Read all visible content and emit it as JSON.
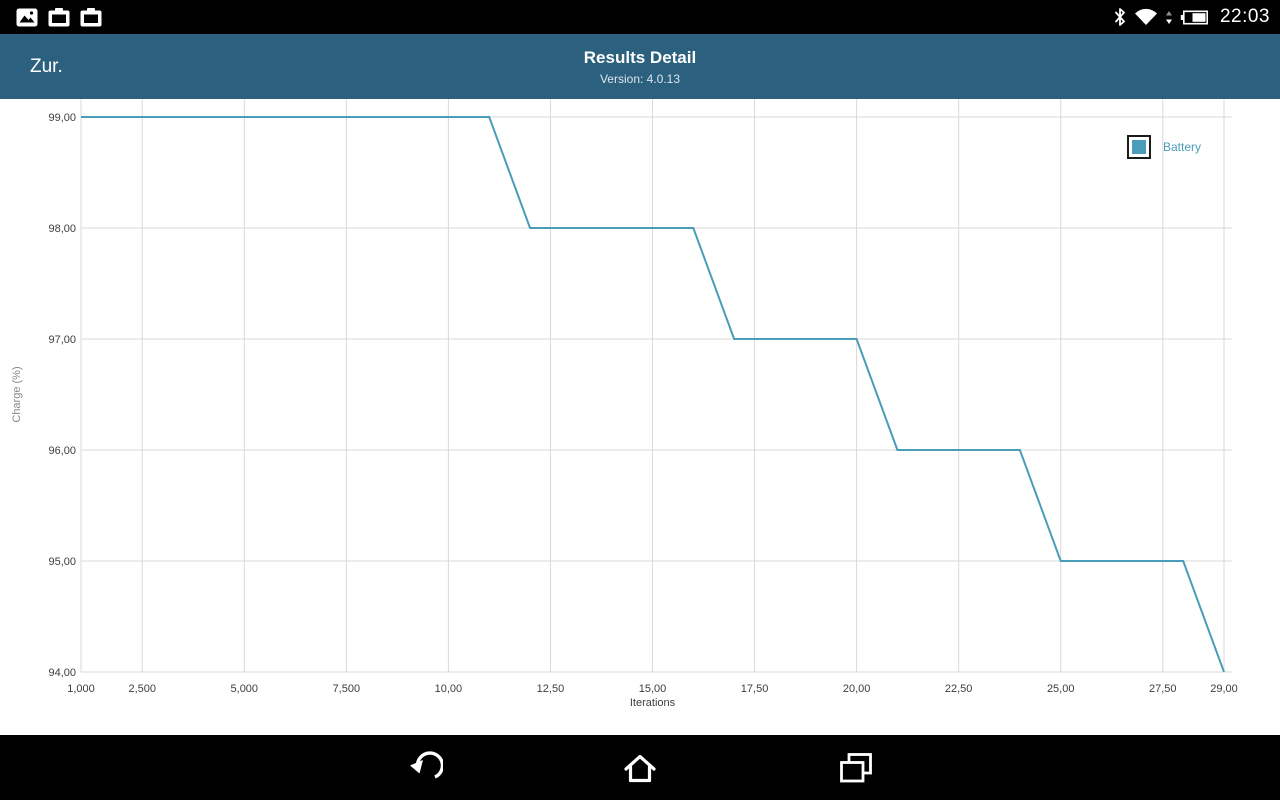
{
  "status_bar": {
    "time": "22:03",
    "left_icons": [
      "gallery-icon",
      "screenshot-icon",
      "screenshot-icon"
    ],
    "right_icons": [
      "bluetooth-icon",
      "wifi-icon",
      "data-activity-icon",
      "battery-icon"
    ]
  },
  "header": {
    "back_label": "Zur.",
    "title": "Results Detail",
    "subtitle": "Version: 4.0.13",
    "background": "#2c607f"
  },
  "chart_data": {
    "type": "line",
    "title": "",
    "xlabel": "Iterations",
    "ylabel": "Charge (%)",
    "xlim": [
      1,
      29
    ],
    "ylim": [
      94,
      99
    ],
    "grid": true,
    "legend_position": "top-right",
    "colors": {
      "grid": "#d9d9d9",
      "axis_text": "#3d3d3d",
      "ylabel_text": "#8a8a8a",
      "legend_border": "#1b1b1b"
    },
    "x_ticks": [
      {
        "value": 1,
        "label": "1,000"
      },
      {
        "value": 2.5,
        "label": "2,500"
      },
      {
        "value": 5,
        "label": "5,000"
      },
      {
        "value": 7.5,
        "label": "7,500"
      },
      {
        "value": 10,
        "label": "10,00"
      },
      {
        "value": 12.5,
        "label": "12,50"
      },
      {
        "value": 15,
        "label": "15,00"
      },
      {
        "value": 17.5,
        "label": "17,50"
      },
      {
        "value": 20,
        "label": "20,00"
      },
      {
        "value": 22.5,
        "label": "22,50"
      },
      {
        "value": 25,
        "label": "25,00"
      },
      {
        "value": 27.5,
        "label": "27,50"
      },
      {
        "value": 29,
        "label": "29,00"
      }
    ],
    "y_ticks": [
      {
        "value": 99,
        "label": "99,00"
      },
      {
        "value": 98,
        "label": "98,00"
      },
      {
        "value": 97,
        "label": "97,00"
      },
      {
        "value": 96,
        "label": "96,00"
      },
      {
        "value": 95,
        "label": "95,00"
      },
      {
        "value": 94,
        "label": "94,00"
      }
    ],
    "series": [
      {
        "name": "Battery",
        "color": "#4a9db8",
        "points": [
          [
            1,
            99
          ],
          [
            11,
            99
          ],
          [
            12,
            98
          ],
          [
            16,
            98
          ],
          [
            17,
            97
          ],
          [
            20,
            97
          ],
          [
            21,
            96
          ],
          [
            24,
            96
          ],
          [
            25,
            95
          ],
          [
            28,
            95
          ],
          [
            29,
            94
          ]
        ]
      }
    ]
  },
  "nav_bar": {
    "buttons": [
      {
        "name": "back",
        "icon": "back-arrow-icon"
      },
      {
        "name": "home",
        "icon": "home-icon"
      },
      {
        "name": "recents",
        "icon": "recents-icon"
      }
    ]
  }
}
